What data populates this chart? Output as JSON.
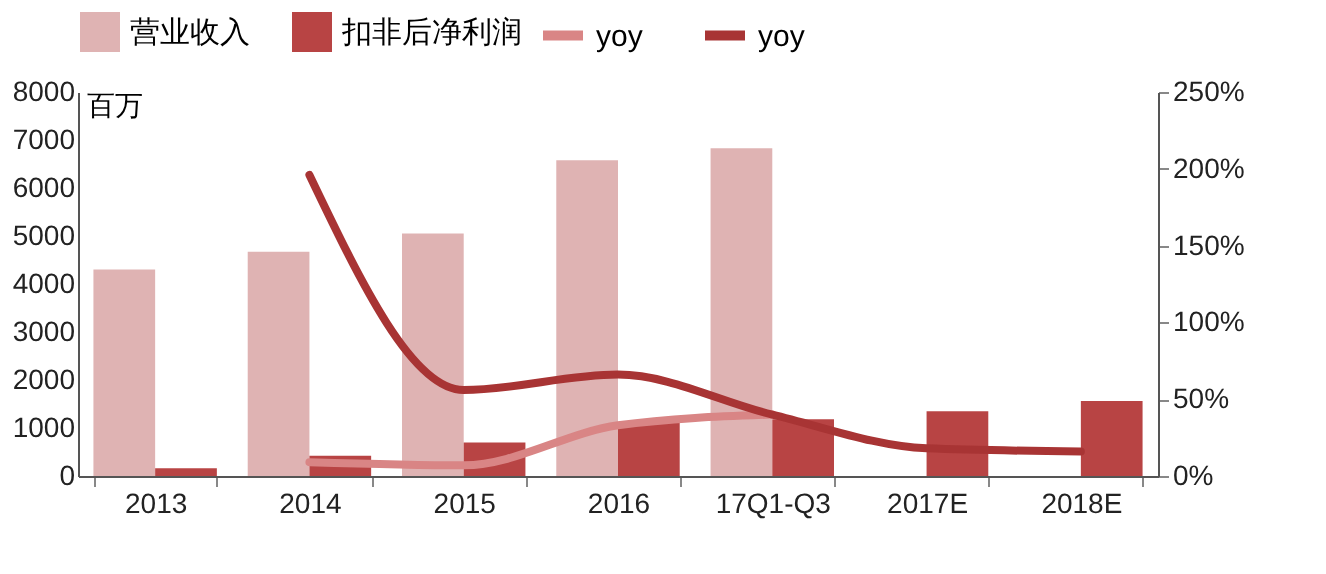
{
  "chart_data": {
    "type": "bar",
    "ylabel": "百万",
    "categories": [
      "2013",
      "2014",
      "2015",
      "2016",
      "17Q1-Q3",
      "2017E",
      "2018E"
    ],
    "series": [
      {
        "name": "营业收入",
        "color": "#dfb3b3",
        "values": [
          4300,
          4670,
          5050,
          6580,
          6830,
          null,
          null
        ]
      },
      {
        "name": "扣非后净利润",
        "color": "#b84444",
        "values": [
          160,
          420,
          700,
          1120,
          1180,
          1350,
          1560
        ]
      },
      {
        "name": "yoy",
        "type": "line",
        "axis": "y2",
        "color": "#d98585",
        "values": [
          null,
          9,
          7,
          33,
          40,
          null,
          null
        ]
      },
      {
        "name": "yoy",
        "type": "line",
        "axis": "y2",
        "color": "#a83434",
        "values": [
          null,
          196,
          56,
          66,
          40,
          18,
          16
        ]
      }
    ],
    "ylim": [
      0,
      8000
    ],
    "yticks": [
      0,
      1000,
      2000,
      3000,
      4000,
      5000,
      6000,
      7000,
      8000
    ],
    "y2lim": [
      0,
      250
    ],
    "y2ticks": [
      {
        "value": 0,
        "label": "0%"
      },
      {
        "value": 50,
        "label": "50%"
      },
      {
        "value": 100,
        "label": "100%"
      },
      {
        "value": 150,
        "label": "150%"
      },
      {
        "value": 200,
        "label": "200%"
      },
      {
        "value": 250,
        "label": "250%"
      }
    ],
    "legend": "top"
  }
}
